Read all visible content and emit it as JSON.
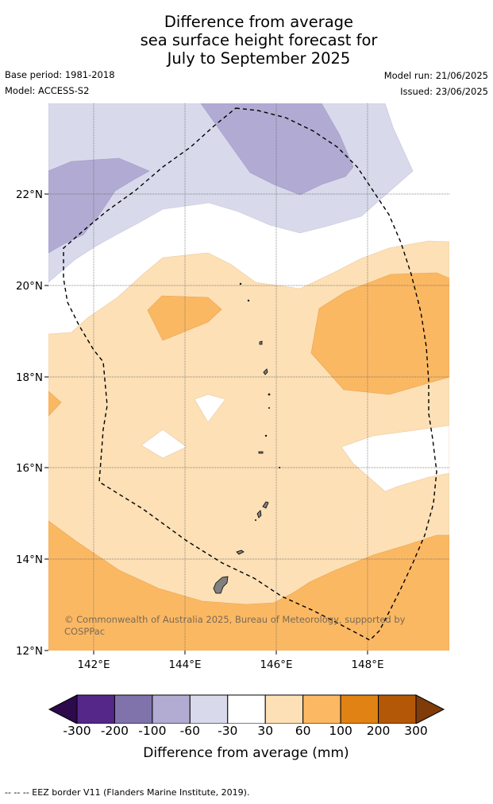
{
  "title": {
    "line1": "Difference from average",
    "line2": "sea surface height forecast for",
    "line3": "July to September 2025"
  },
  "meta": {
    "base_period": "Base period: 1981-2018",
    "model": "Model: ACCESS-S2",
    "model_run": "Model run: 21/06/2025",
    "issued": "Issued: 23/06/2025"
  },
  "map": {
    "lat_labels": [
      "22°N",
      "20°N",
      "18°N",
      "16°N",
      "14°N",
      "12°N"
    ],
    "lon_labels": [
      "142°E",
      "144°E",
      "146°E",
      "148°E"
    ],
    "land_color": "#808080",
    "eez_line_style": "dashed"
  },
  "copyright": "© Commonwealth of Australia 2025, Bureau of Meteorology, supported by COSPPac",
  "colorbar": {
    "labels": [
      "-300",
      "-200",
      "-100",
      "-60",
      "-30",
      "30",
      "60",
      "100",
      "200",
      "300"
    ],
    "colors": [
      "#2d0a4b",
      "#542788",
      "#8073ac",
      "#b2abd2",
      "#d8daeb",
      "#ffffff",
      "#fee0b6",
      "#fdb863",
      "#e08214",
      "#b35806",
      "#7f3b08"
    ],
    "title": "Difference from average (mm)"
  },
  "footer": "--  --  -- EEZ border V11 (Flanders Marine Institute, 2019)."
}
